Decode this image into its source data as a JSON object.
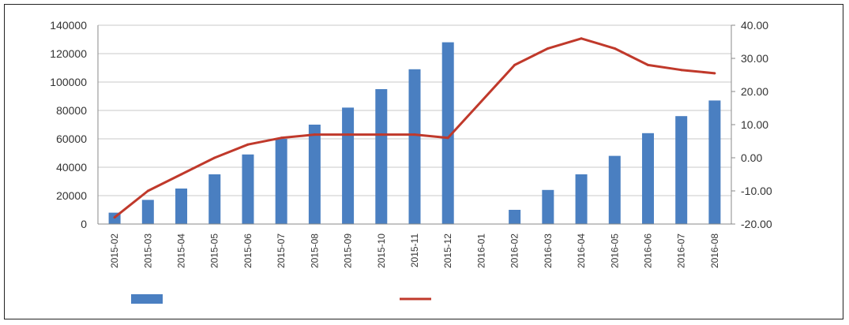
{
  "chart_data": {
    "type": "bar",
    "categories": [
      "2015-02",
      "2015-03",
      "2015-04",
      "2015-05",
      "2015-06",
      "2015-07",
      "2015-08",
      "2015-09",
      "2015-10",
      "2015-11",
      "2015-12",
      "2016-01",
      "2016-02",
      "2016-03",
      "2016-04",
      "2016-05",
      "2016-06",
      "2016-07",
      "2016-08"
    ],
    "series": [
      {
        "kind": "bar",
        "axis": "left",
        "values": [
          8000,
          17000,
          25000,
          35000,
          49000,
          60000,
          70000,
          82000,
          95000,
          109000,
          128000,
          null,
          10000,
          24000,
          35000,
          48000,
          64000,
          76000,
          87000
        ],
        "color": "#4a7fc1"
      },
      {
        "kind": "line",
        "axis": "right",
        "values": [
          -18,
          -10,
          -5,
          0,
          4,
          6,
          7,
          7,
          7,
          7,
          6,
          null,
          28,
          33,
          36,
          33,
          28,
          26.5,
          25.5
        ],
        "color": "#c0392b"
      }
    ],
    "y_left": {
      "ticks": [
        "0",
        "20000",
        "40000",
        "60000",
        "80000",
        "100000",
        "120000",
        "140000"
      ],
      "ylim": [
        0,
        140000
      ]
    },
    "y_right": {
      "ticks": [
        "-20.00",
        "-10.00",
        "0.00",
        "10.00",
        "20.00",
        "30.00",
        "40.00"
      ],
      "ylim": [
        -20,
        40
      ]
    },
    "grid": true,
    "legend_position": "bottom"
  }
}
